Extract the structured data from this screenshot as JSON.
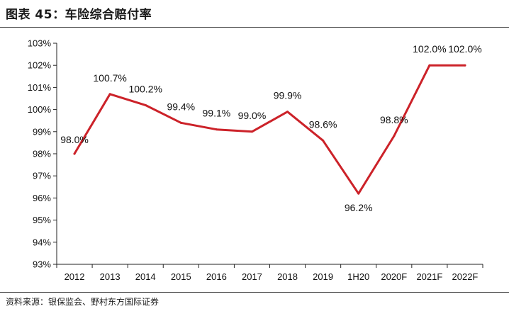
{
  "figure": {
    "title": "图表 45：车险综合赔付率",
    "source": "资料来源：银保监会、野村东方国际证券"
  },
  "colors": {
    "line": "#cc2229",
    "axis": "#222222",
    "text": "#111111"
  },
  "chart_data": {
    "type": "line",
    "title": "车险综合赔付率",
    "categories": [
      "2012",
      "2013",
      "2014",
      "2015",
      "2016",
      "2017",
      "2018",
      "2019",
      "1H20",
      "2020F",
      "2021F",
      "2022F"
    ],
    "series": [
      {
        "values": [
          98.0,
          100.7,
          100.2,
          99.4,
          99.1,
          99.0,
          99.9,
          98.6,
          96.2,
          98.8,
          102.0,
          102.0
        ]
      }
    ],
    "data_labels": [
      "98.0%",
      "100.7%",
      "100.2%",
      "99.4%",
      "99.1%",
      "99.0%",
      "99.9%",
      "98.6%",
      "96.2%",
      "98.8%",
      "102.0%",
      "102.0%"
    ],
    "y_ticks": [
      "93%",
      "94%",
      "95%",
      "96%",
      "97%",
      "98%",
      "99%",
      "100%",
      "101%",
      "102%",
      "103%"
    ],
    "ylim": [
      93,
      103
    ],
    "grid": false,
    "legend": "none"
  }
}
